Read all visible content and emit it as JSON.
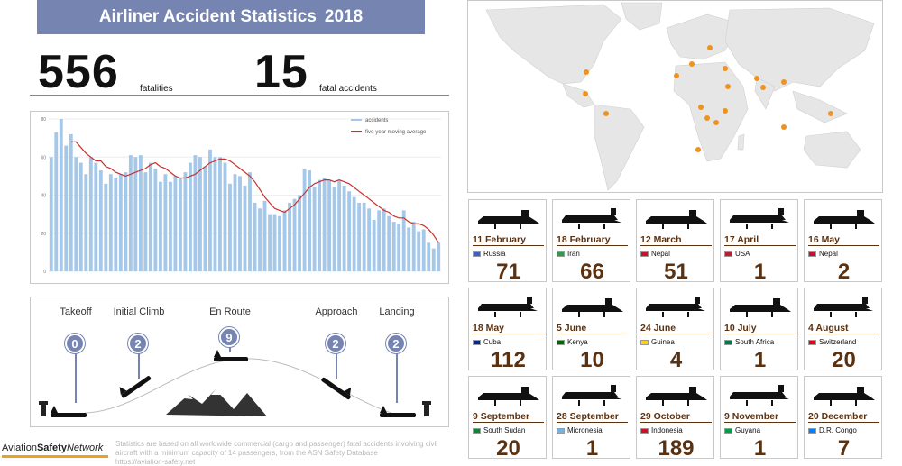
{
  "header": {
    "title": "Airliner Accident Statistics",
    "year": "2018"
  },
  "stats": {
    "fatalities": "556",
    "fatalities_label": "fatalities",
    "accidents": "15",
    "accidents_label": "fatal accidents"
  },
  "chart_data": {
    "type": "bar",
    "series": [
      {
        "name": "accidents",
        "color": "#a5c8e8",
        "values": [
          60,
          73,
          80,
          66,
          72,
          60,
          57,
          51,
          60,
          57,
          53,
          46,
          51,
          49,
          51,
          52,
          61,
          60,
          61,
          52,
          57,
          54,
          47,
          51,
          47,
          50,
          49,
          52,
          57,
          61,
          60,
          55,
          64,
          60,
          60,
          57,
          46,
          51,
          50,
          45,
          52,
          36,
          33,
          37,
          30,
          30,
          29,
          32,
          36,
          38,
          40,
          54,
          53,
          44,
          48,
          49,
          48,
          44,
          48,
          45,
          42,
          39,
          36,
          36,
          33,
          27,
          32,
          33,
          29,
          26,
          25,
          32,
          23,
          26,
          21,
          22,
          15,
          12,
          15
        ]
      },
      {
        "name": "five-year moving average",
        "color": "#c9302c",
        "values": [
          null,
          null,
          null,
          null,
          68,
          68,
          65,
          62,
          60,
          58,
          58,
          55,
          54,
          52,
          51,
          50,
          51,
          52,
          53,
          54,
          56,
          57,
          55,
          54,
          52,
          50,
          49,
          49,
          50,
          51,
          53,
          55,
          57,
          58,
          59,
          59,
          58,
          56,
          54,
          52,
          50,
          47,
          43,
          39,
          36,
          33,
          32,
          31,
          33,
          35,
          38,
          41,
          44,
          46,
          47,
          48,
          48,
          47,
          48,
          47,
          46,
          44,
          42,
          40,
          38,
          36,
          34,
          32,
          31,
          29,
          28,
          28,
          26,
          25,
          25,
          24,
          22,
          19,
          15
        ]
      }
    ],
    "ylim": [
      0,
      80
    ],
    "yticks": [
      0,
      20,
      40,
      60,
      80
    ],
    "legend": "top-right",
    "grid": true
  },
  "phases": [
    {
      "label": "Takeoff",
      "count": "0"
    },
    {
      "label": "Initial Climb",
      "count": "2"
    },
    {
      "label": "En Route",
      "count": "9"
    },
    {
      "label": "Approach",
      "count": "2"
    },
    {
      "label": "Landing",
      "count": "2"
    }
  ],
  "footer": {
    "logo_a": "Aviation",
    "logo_b": "Safety",
    "logo_c": "Network",
    "note": "Statistics are based on all worldwide commercial (cargo and passenger) fatal accidents involving civil aircraft with a minimum capacity of 14 passengers, from the ASN Safety Database",
    "url": "https://aviation-safety.net"
  },
  "accidents": [
    {
      "date": "11 February",
      "country": "Russia",
      "fatalities": "71",
      "flag": "#3a5fcd"
    },
    {
      "date": "18 February",
      "country": "Iran",
      "fatalities": "66",
      "flag": "#2e9a4a"
    },
    {
      "date": "12 March",
      "country": "Nepal",
      "fatalities": "51",
      "flag": "#c8102e"
    },
    {
      "date": "17 April",
      "country": "USA",
      "fatalities": "1",
      "flag": "#b22234"
    },
    {
      "date": "16 May",
      "country": "Nepal",
      "fatalities": "2",
      "flag": "#c8102e"
    },
    {
      "date": "18 May",
      "country": "Cuba",
      "fatalities": "112",
      "flag": "#002a8f"
    },
    {
      "date": "5 June",
      "country": "Kenya",
      "fatalities": "10",
      "flag": "#006600"
    },
    {
      "date": "24 June",
      "country": "Guinea",
      "fatalities": "4",
      "flag": "#fcd116"
    },
    {
      "date": "10 July",
      "country": "South Africa",
      "fatalities": "1",
      "flag": "#007a4d"
    },
    {
      "date": "4 August",
      "country": "Switzerland",
      "fatalities": "20",
      "flag": "#e3001b"
    },
    {
      "date": "9 September",
      "country": "South Sudan",
      "fatalities": "20",
      "flag": "#078930"
    },
    {
      "date": "28 September",
      "country": "Micronesia",
      "fatalities": "1",
      "flag": "#75b2dd"
    },
    {
      "date": "29 October",
      "country": "Indonesia",
      "fatalities": "189",
      "flag": "#ce1126"
    },
    {
      "date": "9 November",
      "country": "Guyana",
      "fatalities": "1",
      "flag": "#009e49"
    },
    {
      "date": "20 December",
      "country": "D.R. Congo",
      "fatalities": "7",
      "flag": "#007fff"
    }
  ],
  "colors": {
    "accent": "#7584b1",
    "card_text": "#5a3212",
    "dot": "#f0921e",
    "land": "#e6e6e6"
  }
}
